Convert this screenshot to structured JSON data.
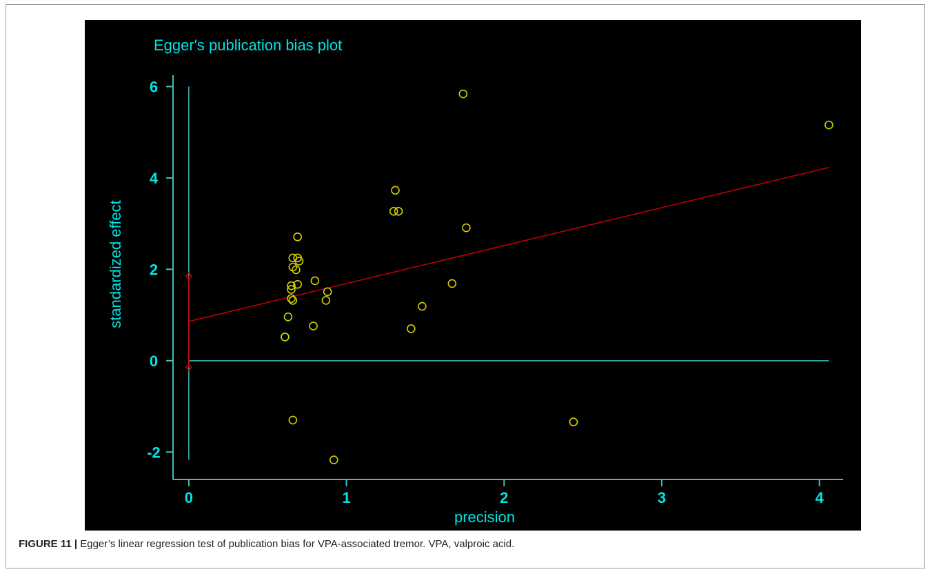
{
  "chart_data": {
    "type": "scatter",
    "title": "Egger's publication bias plot",
    "xlabel": "precision",
    "ylabel": "standardized effect",
    "xlim": [
      -0.1,
      4.15
    ],
    "ylim": [
      -2.6,
      6.4
    ],
    "x_ticks": [
      "0",
      "1",
      "2",
      "3",
      "4"
    ],
    "y_ticks": [
      "-2",
      "0",
      "2",
      "4",
      "6"
    ],
    "points": [
      {
        "x": 1.74,
        "y": 5.84
      },
      {
        "x": 4.06,
        "y": 5.16
      },
      {
        "x": 1.31,
        "y": 3.73
      },
      {
        "x": 1.3,
        "y": 3.27
      },
      {
        "x": 1.33,
        "y": 3.27
      },
      {
        "x": 1.76,
        "y": 2.91
      },
      {
        "x": 0.69,
        "y": 2.71
      },
      {
        "x": 0.66,
        "y": 2.25
      },
      {
        "x": 0.69,
        "y": 2.25
      },
      {
        "x": 0.7,
        "y": 2.18
      },
      {
        "x": 0.66,
        "y": 2.05
      },
      {
        "x": 0.68,
        "y": 1.99
      },
      {
        "x": 0.8,
        "y": 1.75
      },
      {
        "x": 1.67,
        "y": 1.69
      },
      {
        "x": 0.69,
        "y": 1.67
      },
      {
        "x": 0.65,
        "y": 1.64
      },
      {
        "x": 0.65,
        "y": 1.56
      },
      {
        "x": 0.88,
        "y": 1.51
      },
      {
        "x": 0.65,
        "y": 1.36
      },
      {
        "x": 0.66,
        "y": 1.32
      },
      {
        "x": 0.87,
        "y": 1.32
      },
      {
        "x": 1.48,
        "y": 1.19
      },
      {
        "x": 0.63,
        "y": 0.96
      },
      {
        "x": 0.79,
        "y": 0.76
      },
      {
        "x": 1.41,
        "y": 0.7
      },
      {
        "x": 0.61,
        "y": 0.52
      },
      {
        "x": 0.61,
        "y": 0.52
      },
      {
        "x": 0.66,
        "y": -1.3
      },
      {
        "x": 2.44,
        "y": -1.34
      },
      {
        "x": 0.92,
        "y": -2.17
      }
    ],
    "regression_line": {
      "intercept": 0.86,
      "slope": 0.83,
      "x_end": 4.06
    },
    "intercept_ci": [
      -0.14,
      1.85
    ],
    "vertical_reference": {
      "x": 0,
      "y_range": [
        -2.17,
        6.0
      ]
    },
    "horizontal_reference": {
      "y": 0,
      "x_range": [
        0,
        4.06
      ]
    },
    "colors": {
      "background": "#000000",
      "axes": "#3fbfbf",
      "text": "#00e5e5",
      "points": "#d4d000",
      "regression": "#c80000"
    }
  },
  "caption": {
    "label": "FIGURE 11 |",
    "text": " Egger’s linear regression test of publication bias for VPA-associated tremor. VPA, valproic acid."
  }
}
